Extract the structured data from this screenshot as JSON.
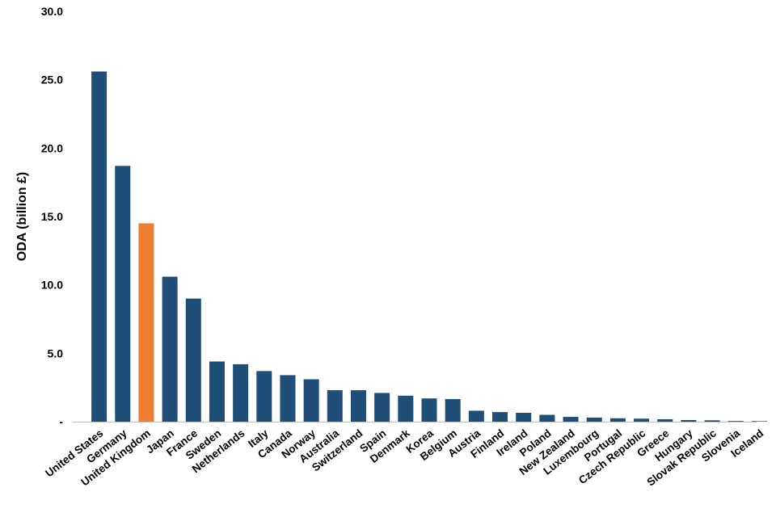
{
  "chart_data": {
    "type": "bar",
    "title": "",
    "xlabel": "",
    "ylabel": "ODA (billion £)",
    "ylim": [
      0,
      30
    ],
    "y_ticks": [
      {
        "value": 0,
        "label": "-"
      },
      {
        "value": 5,
        "label": "5.0"
      },
      {
        "value": 10,
        "label": "10.0"
      },
      {
        "value": 15,
        "label": "15.0"
      },
      {
        "value": 20,
        "label": "20.0"
      },
      {
        "value": 25,
        "label": "25.0"
      },
      {
        "value": 30,
        "label": "30.0"
      }
    ],
    "grid": false,
    "legend": "none",
    "colors": {
      "default": "#1f4e79",
      "highlight": "#ed7d31"
    },
    "highlight_category": "United Kingdom",
    "categories": [
      "United States",
      "Germany",
      "United Kingdom",
      "Japan",
      "France",
      "Sweden",
      "Netherlands",
      "Italy",
      "Canada",
      "Norway",
      "Australia",
      "Switzerland",
      "Spain",
      "Denmark",
      "Korea",
      "Belgium",
      "Austria",
      "Finland",
      "Ireland",
      "Poland",
      "New Zealand",
      "Luxembourg",
      "Portugal",
      "Czech Republic",
      "Greece",
      "Hungary",
      "Slovak Republic",
      "Slovenia",
      "Iceland"
    ],
    "values": [
      25.6,
      18.7,
      14.5,
      10.6,
      9.0,
      4.4,
      4.2,
      3.7,
      3.4,
      3.1,
      2.3,
      2.3,
      2.1,
      1.9,
      1.7,
      1.65,
      0.8,
      0.7,
      0.65,
      0.5,
      0.35,
      0.3,
      0.25,
      0.22,
      0.18,
      0.12,
      0.1,
      0.05,
      0.04
    ]
  }
}
